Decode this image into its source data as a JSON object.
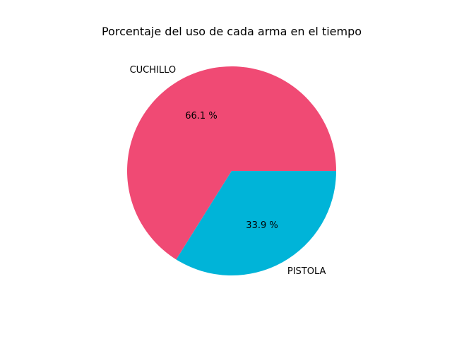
{
  "chart_data": {
    "type": "pie",
    "title": "Porcentaje del uso de cada arma en el tiempo",
    "slices": [
      {
        "label": "CUCHILLO",
        "value": 66.1,
        "pct_label": "66.1 %",
        "color": "#f04a74"
      },
      {
        "label": "PISTOLA",
        "value": 33.9,
        "pct_label": "33.9 %",
        "color": "#00b4d8"
      }
    ],
    "start_angle_deg": 0,
    "direction": "counterclockwise",
    "legend": "none"
  }
}
